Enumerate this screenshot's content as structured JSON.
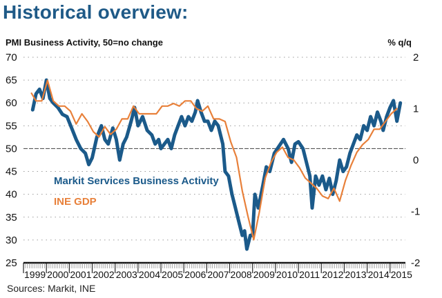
{
  "header": {
    "title": "Historical overview:",
    "left_axis_label": "PMI Business Activity, 50=no change",
    "right_axis_label": "% q/q",
    "source": "Sources: Markit, INE"
  },
  "colors": {
    "title": "#1f5a87",
    "pmi_series": "#1b5a8a",
    "gdp_series": "#e8803a",
    "grid": "#9a9a9a",
    "axis": "#111111"
  },
  "chart_data": {
    "type": "line",
    "title": "Historical overview:",
    "xlabel": "",
    "ylabel": "PMI Business Activity, 50=no change",
    "y2label": "% q/q",
    "xlim": [
      1999.0,
      2015.67
    ],
    "ylim": [
      25,
      70
    ],
    "y2lim": [
      -2,
      2
    ],
    "grid": true,
    "reference_line": 50,
    "x_tick_labels": [
      "1999",
      "2000",
      "2001",
      "2002",
      "2003",
      "2004",
      "2005",
      "2006",
      "2007",
      "2008",
      "2009",
      "2010",
      "2011",
      "2012",
      "2013",
      "2014",
      "2015"
    ],
    "y_ticks": [
      25,
      30,
      35,
      40,
      45,
      50,
      55,
      60,
      65,
      70
    ],
    "y2_ticks": [
      -2,
      -1,
      0,
      1,
      2
    ],
    "legend": "inline-left",
    "series": [
      {
        "name": "Markit Services Business Activity",
        "axis": "left",
        "color": "#1b5a8a",
        "points": [
          [
            1999.4,
            58.5
          ],
          [
            1999.55,
            62
          ],
          [
            1999.7,
            63
          ],
          [
            1999.85,
            61
          ],
          [
            2000.0,
            65
          ],
          [
            2000.15,
            61
          ],
          [
            2000.3,
            60
          ],
          [
            2000.5,
            59
          ],
          [
            2000.7,
            57.5
          ],
          [
            2000.9,
            57
          ],
          [
            2001.1,
            54.5
          ],
          [
            2001.3,
            52
          ],
          [
            2001.5,
            50
          ],
          [
            2001.7,
            49
          ],
          [
            2001.85,
            46.5
          ],
          [
            2002.0,
            48
          ],
          [
            2002.2,
            52.5
          ],
          [
            2002.4,
            55
          ],
          [
            2002.55,
            52
          ],
          [
            2002.7,
            51
          ],
          [
            2002.9,
            54.5
          ],
          [
            2003.05,
            52
          ],
          [
            2003.2,
            47.5
          ],
          [
            2003.35,
            51
          ],
          [
            2003.5,
            52.5
          ],
          [
            2003.7,
            56
          ],
          [
            2003.85,
            59
          ],
          [
            2004.0,
            55
          ],
          [
            2004.2,
            57
          ],
          [
            2004.4,
            54
          ],
          [
            2004.6,
            53
          ],
          [
            2004.75,
            51
          ],
          [
            2004.9,
            52
          ],
          [
            2005.0,
            50
          ],
          [
            2005.15,
            51
          ],
          [
            2005.3,
            52
          ],
          [
            2005.45,
            50
          ],
          [
            2005.6,
            53
          ],
          [
            2005.75,
            55
          ],
          [
            2005.9,
            57
          ],
          [
            2006.05,
            55
          ],
          [
            2006.2,
            57
          ],
          [
            2006.35,
            56
          ],
          [
            2006.5,
            58
          ],
          [
            2006.6,
            60.5
          ],
          [
            2006.75,
            58
          ],
          [
            2006.9,
            56
          ],
          [
            2007.05,
            56
          ],
          [
            2007.2,
            54
          ],
          [
            2007.35,
            56
          ],
          [
            2007.5,
            55
          ],
          [
            2007.6,
            53
          ],
          [
            2007.7,
            51
          ],
          [
            2007.8,
            45
          ],
          [
            2007.95,
            44
          ],
          [
            2008.1,
            40
          ],
          [
            2008.25,
            37
          ],
          [
            2008.4,
            34
          ],
          [
            2008.55,
            31
          ],
          [
            2008.65,
            32
          ],
          [
            2008.75,
            28
          ],
          [
            2008.9,
            31
          ],
          [
            2009.0,
            31
          ],
          [
            2009.1,
            40
          ],
          [
            2009.25,
            37
          ],
          [
            2009.45,
            42
          ],
          [
            2009.6,
            46
          ],
          [
            2009.75,
            45
          ],
          [
            2009.95,
            49
          ],
          [
            2010.15,
            50.5
          ],
          [
            2010.35,
            52
          ],
          [
            2010.55,
            50
          ],
          [
            2010.7,
            47
          ],
          [
            2010.85,
            51
          ],
          [
            2011.0,
            51.5
          ],
          [
            2011.2,
            50
          ],
          [
            2011.35,
            47
          ],
          [
            2011.5,
            44
          ],
          [
            2011.6,
            37
          ],
          [
            2011.75,
            44
          ],
          [
            2011.9,
            42
          ],
          [
            2012.05,
            44
          ],
          [
            2012.2,
            41
          ],
          [
            2012.35,
            43.5
          ],
          [
            2012.5,
            40
          ],
          [
            2012.65,
            43
          ],
          [
            2012.8,
            47.5
          ],
          [
            2012.95,
            45
          ],
          [
            2013.1,
            46
          ],
          [
            2013.25,
            49
          ],
          [
            2013.4,
            51
          ],
          [
            2013.55,
            53
          ],
          [
            2013.7,
            52
          ],
          [
            2013.85,
            55
          ],
          [
            2014.0,
            54
          ],
          [
            2014.15,
            57
          ],
          [
            2014.3,
            55
          ],
          [
            2014.45,
            58
          ],
          [
            2014.6,
            56
          ],
          [
            2014.7,
            54
          ],
          [
            2014.85,
            57
          ],
          [
            2015.0,
            59
          ],
          [
            2015.15,
            60.5
          ],
          [
            2015.3,
            56
          ],
          [
            2015.45,
            60
          ]
        ]
      },
      {
        "name": "INE GDP",
        "axis": "right",
        "color": "#e8803a",
        "points": [
          [
            1999.35,
            1.3
          ],
          [
            1999.55,
            1.15
          ],
          [
            1999.8,
            1.15
          ],
          [
            2000.05,
            1.55
          ],
          [
            2000.3,
            1.15
          ],
          [
            2000.55,
            1.05
          ],
          [
            2000.8,
            1.05
          ],
          [
            2001.05,
            0.95
          ],
          [
            2001.3,
            0.7
          ],
          [
            2001.55,
            0.9
          ],
          [
            2001.8,
            0.75
          ],
          [
            2002.05,
            0.55
          ],
          [
            2002.3,
            0.45
          ],
          [
            2002.55,
            0.65
          ],
          [
            2002.8,
            0.5
          ],
          [
            2003.05,
            0.6
          ],
          [
            2003.3,
            0.8
          ],
          [
            2003.55,
            0.8
          ],
          [
            2003.8,
            1.05
          ],
          [
            2004.05,
            0.9
          ],
          [
            2004.3,
            0.9
          ],
          [
            2004.55,
            0.9
          ],
          [
            2004.8,
            0.9
          ],
          [
            2005.05,
            1.05
          ],
          [
            2005.3,
            1.05
          ],
          [
            2005.55,
            1.1
          ],
          [
            2005.8,
            1.05
          ],
          [
            2006.05,
            1.15
          ],
          [
            2006.3,
            1.15
          ],
          [
            2006.55,
            1.0
          ],
          [
            2006.8,
            0.95
          ],
          [
            2007.05,
            1.05
          ],
          [
            2007.3,
            0.8
          ],
          [
            2007.55,
            0.8
          ],
          [
            2007.8,
            0.75
          ],
          [
            2008.05,
            0.35
          ],
          [
            2008.3,
            0.05
          ],
          [
            2008.55,
            -0.6
          ],
          [
            2008.8,
            -1.1
          ],
          [
            2009.05,
            -1.55
          ],
          [
            2009.3,
            -1.0
          ],
          [
            2009.55,
            -0.35
          ],
          [
            2009.8,
            -0.05
          ],
          [
            2010.05,
            0.15
          ],
          [
            2010.3,
            0.25
          ],
          [
            2010.55,
            0.05
          ],
          [
            2010.8,
            0.0
          ],
          [
            2011.05,
            -0.15
          ],
          [
            2011.3,
            -0.35
          ],
          [
            2011.55,
            -0.45
          ],
          [
            2011.8,
            -0.55
          ],
          [
            2012.05,
            -0.7
          ],
          [
            2012.3,
            -0.75
          ],
          [
            2012.55,
            -0.55
          ],
          [
            2012.8,
            -0.8
          ],
          [
            2013.05,
            -0.4
          ],
          [
            2013.3,
            -0.1
          ],
          [
            2013.55,
            0.15
          ],
          [
            2013.8,
            0.3
          ],
          [
            2014.05,
            0.4
          ],
          [
            2014.3,
            0.6
          ],
          [
            2014.55,
            0.6
          ],
          [
            2014.8,
            0.75
          ],
          [
            2015.05,
            0.9
          ],
          [
            2015.3,
            1.0
          ]
        ]
      }
    ]
  }
}
